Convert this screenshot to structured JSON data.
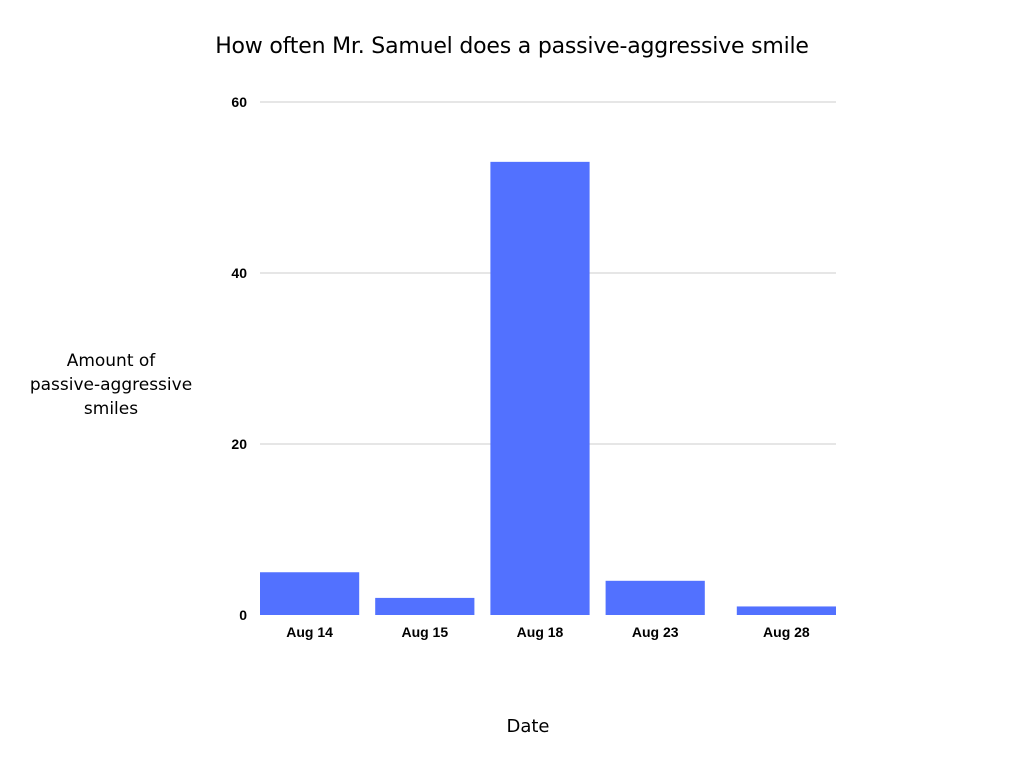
{
  "chart_data": {
    "type": "bar",
    "title": "How often Mr. Samuel does a passive-aggressive smile",
    "xlabel": "Date",
    "ylabel": "Amount of\npassive-aggressive\nsmiles",
    "categories": [
      "Aug 14",
      "Aug 15",
      "Aug 18",
      "Aug 23",
      "Aug 28"
    ],
    "values": [
      5,
      2,
      53,
      4,
      1
    ],
    "ylim": [
      0,
      60
    ],
    "yticks": [
      0,
      20,
      40,
      60
    ],
    "grid": true,
    "legend": "none",
    "bar_color": "#5271FF",
    "grid_color": "#CCCCCC"
  }
}
